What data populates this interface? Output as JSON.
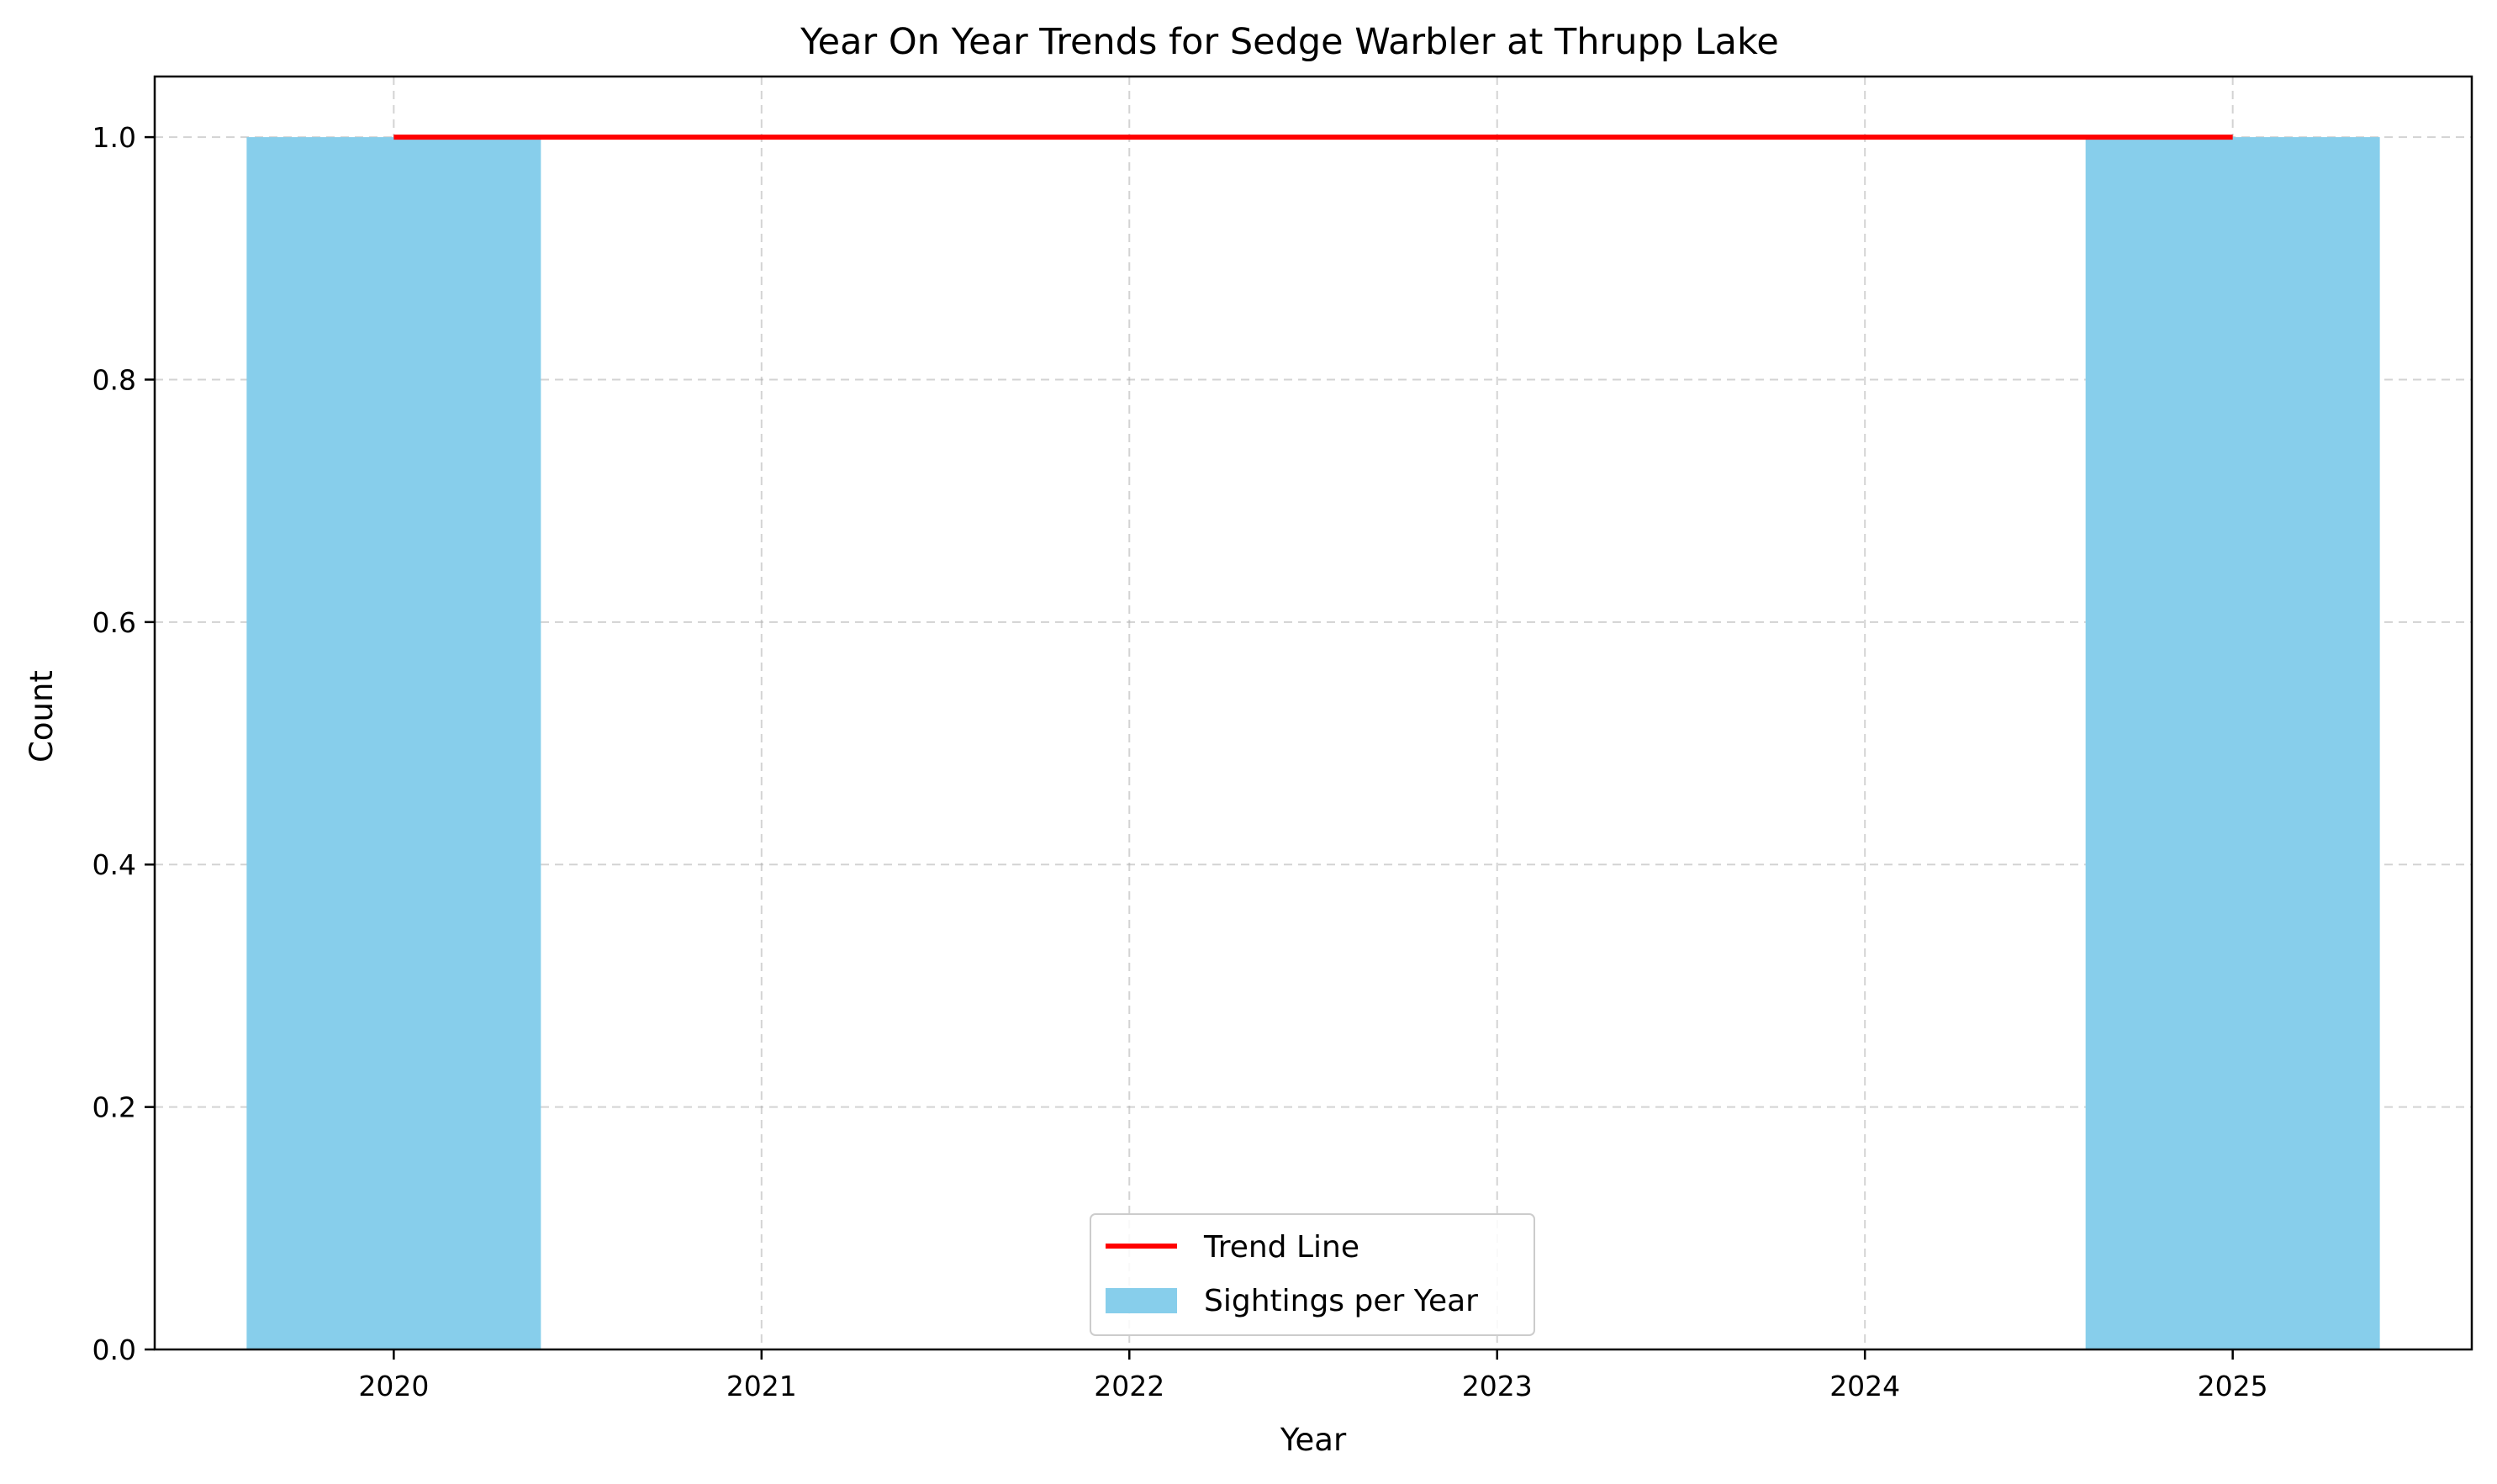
{
  "chart_data": {
    "type": "bar",
    "title": "Year On Year Trends for Sedge Warbler at Thrupp Lake",
    "xlabel": "Year",
    "ylabel": "Count",
    "categories": [
      "2020",
      "2021",
      "2022",
      "2023",
      "2024",
      "2025"
    ],
    "x": [
      2020,
      2021,
      2022,
      2023,
      2024,
      2025
    ],
    "xlim": [
      2019.35,
      2025.65
    ],
    "ylim": [
      0,
      1.05
    ],
    "y_ticks": [
      "0.0",
      "0.2",
      "0.4",
      "0.6",
      "0.8",
      "1.0"
    ],
    "grid": true,
    "legend_position": "bottom-center",
    "series": [
      {
        "name": "Sightings per Year",
        "kind": "bar",
        "color": "#87ceeb",
        "bar_width_years": 0.8,
        "x": [
          2020,
          2025
        ],
        "values": [
          1,
          1
        ]
      },
      {
        "name": "Trend Line",
        "kind": "line",
        "color": "#ff0000",
        "x": [
          2020,
          2025
        ],
        "values": [
          1,
          1
        ]
      }
    ],
    "legend": [
      {
        "label": "Trend Line",
        "color": "#ff0000",
        "marker": "line"
      },
      {
        "label": "Sightings per Year",
        "color": "#87ceeb",
        "marker": "patch"
      }
    ]
  }
}
